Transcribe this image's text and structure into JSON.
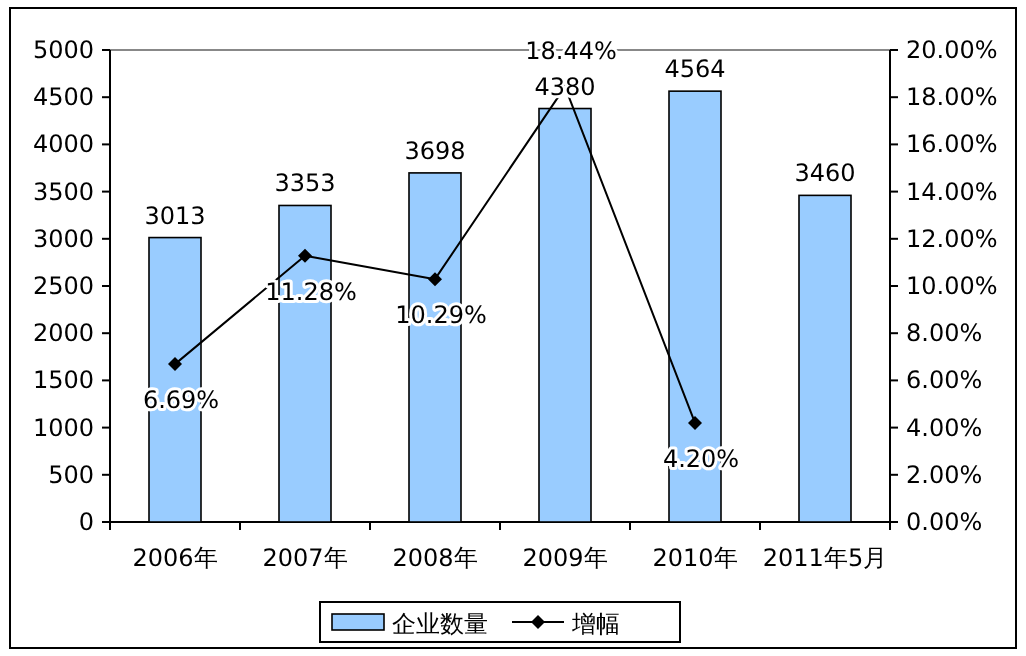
{
  "chart_data": {
    "type": "bar",
    "categories": [
      "2006年",
      "2007年",
      "2008年",
      "2009年",
      "2010年",
      "2011年5月"
    ],
    "series": [
      {
        "name": "企业数量",
        "color": "#99ccff",
        "values": [
          3013,
          3353,
          3698,
          4380,
          4564,
          3460
        ],
        "value_labels": [
          "3013",
          "3353",
          "3698",
          "4380",
          "4564",
          "3460"
        ]
      },
      {
        "name": "增幅",
        "type": "line",
        "axis": "y2",
        "color": "#000000",
        "marker": "diamond",
        "values": [
          6.69,
          11.28,
          10.29,
          18.44,
          4.2,
          null
        ],
        "value_labels": [
          "6.69%",
          "11.28%",
          "10.29%",
          "18.44%",
          "4.20%",
          null
        ]
      }
    ],
    "ylim": [
      0,
      5000
    ],
    "yticks": [
      0,
      500,
      1000,
      1500,
      2000,
      2500,
      3000,
      3500,
      4000,
      4500,
      5000
    ],
    "y2lim": [
      0,
      20
    ],
    "y2ticks": [
      {
        "value": 0,
        "label": "0.00%"
      },
      {
        "value": 2,
        "label": "2.00%"
      },
      {
        "value": 4,
        "label": "4.00%"
      },
      {
        "value": 6,
        "label": "6.00%"
      },
      {
        "value": 8,
        "label": "8.00%"
      },
      {
        "value": 10,
        "label": "10.00%"
      },
      {
        "value": 12,
        "label": "12.00%"
      },
      {
        "value": 14,
        "label": "14.00%"
      },
      {
        "value": 16,
        "label": "16.00%"
      },
      {
        "value": 18,
        "label": "18.00%"
      },
      {
        "value": 20,
        "label": "20.00%"
      }
    ],
    "grid": false,
    "legend": "bottom"
  }
}
